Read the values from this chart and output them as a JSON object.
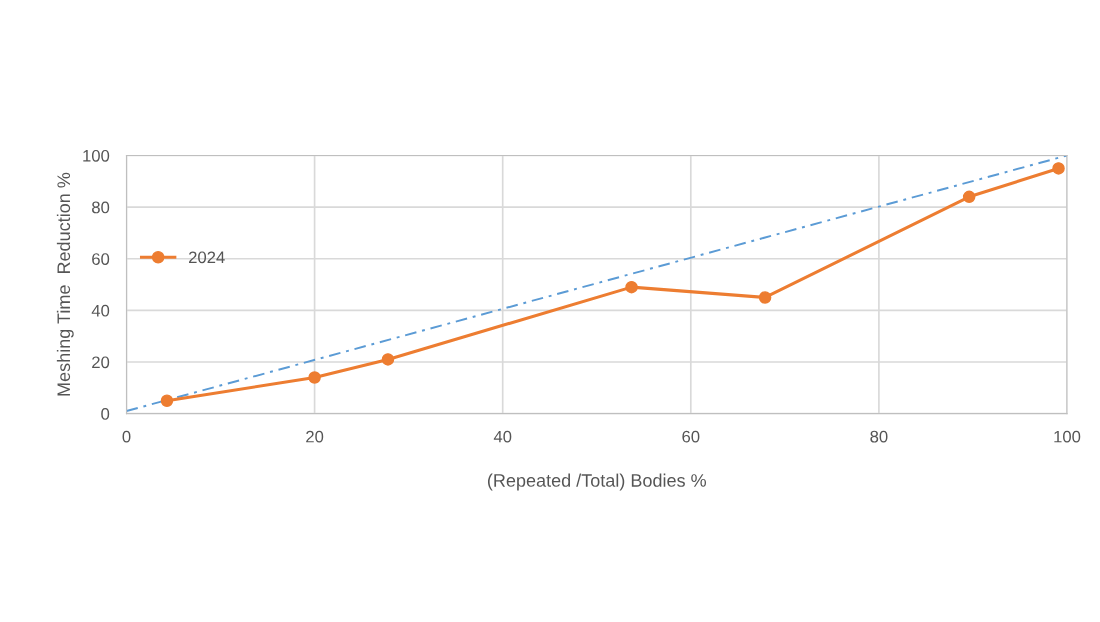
{
  "chart_data": {
    "type": "line",
    "xlabel": "(Repeated /Total) Bodies %",
    "ylabel": "Meshing Time  Reduction %",
    "xlim": [
      0,
      100
    ],
    "xticks": [
      0,
      20,
      40,
      60,
      80,
      100
    ],
    "ylim": [
      0,
      100
    ],
    "yticks": [
      0,
      20,
      40,
      60,
      80,
      100
    ],
    "grid": true,
    "legend": "left",
    "series": [
      {
        "name": "2024",
        "color": "#ed7d31",
        "marker": "circle",
        "line_style": "solid",
        "x": [
          4.3,
          20,
          27.8,
          53.7,
          67.9,
          89.6,
          99.1
        ],
        "values": [
          5,
          14,
          21,
          49,
          45,
          84,
          95
        ]
      },
      {
        "type": "line",
        "color": "#5b9bd5",
        "marker": "none",
        "line_style": "dashdot",
        "x": [
          0,
          100
        ],
        "values": [
          1,
          100
        ]
      }
    ]
  }
}
